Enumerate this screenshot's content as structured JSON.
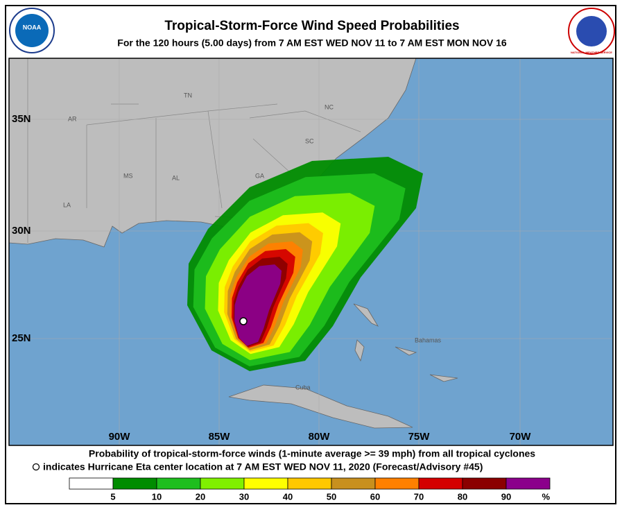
{
  "header": {
    "title": "Tropical-Storm-Force Wind Speed Probabilities",
    "subtitle": "For the 120 hours (5.00 days) from 7 AM EST WED NOV 11 to 7 AM EST MON NOV 16"
  },
  "logos": {
    "noaa": "NOAA",
    "nws": "NATIONAL WEATHER SERVICE"
  },
  "map": {
    "lat_labels": [
      "35N",
      "30N",
      "25N"
    ],
    "lon_labels": [
      "90W",
      "85W",
      "80W",
      "75W",
      "70W"
    ],
    "state_labels": [
      "AR",
      "TN",
      "NC",
      "MS",
      "AL",
      "GA",
      "SC",
      "LA"
    ],
    "place_labels": [
      "Bahamas",
      "Cuba"
    ]
  },
  "caption": {
    "line1": "Probability of tropical-storm-force winds (1-minute average >= 39 mph) from all tropical cyclones",
    "line2": "indicates Hurricane Eta center location at 7 AM EST WED NOV 11, 2020 (Forecast/Advisory #45)"
  },
  "legend": {
    "labels": [
      "5",
      "10",
      "20",
      "30",
      "40",
      "50",
      "60",
      "70",
      "80",
      "90"
    ],
    "unit": "%",
    "colors": [
      "#ffffff",
      "#008c00",
      "#1ebe1e",
      "#80f000",
      "#ffff00",
      "#ffc800",
      "#c8901e",
      "#ff8000",
      "#d40000",
      "#8b0000",
      "#8b008b"
    ]
  }
}
